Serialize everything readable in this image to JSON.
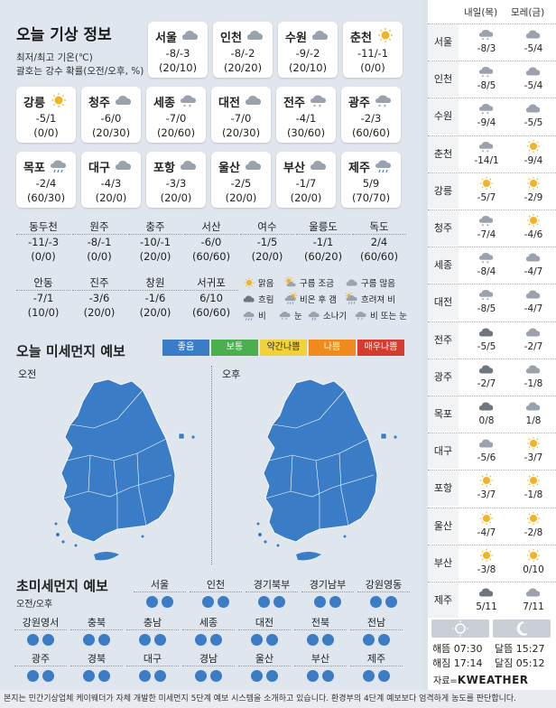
{
  "title": "오늘 기상 정보",
  "subtitle1": "최저/최고 기온(℃)",
  "subtitle2": "괄호는 강수 확률(오전/오후, %)",
  "main_cities": [
    {
      "name": "서울",
      "temp": "-8/-3",
      "prob": "(20/10)",
      "icon": "cloud-icon"
    },
    {
      "name": "인천",
      "temp": "-8/-2",
      "prob": "(20/20)",
      "icon": "cloud-icon"
    },
    {
      "name": "수원",
      "temp": "-9/-2",
      "prob": "(20/10)",
      "icon": "cloud-icon"
    },
    {
      "name": "춘천",
      "temp": "-11/-1",
      "prob": "(0/0)",
      "icon": "sun-icon"
    },
    {
      "name": "강릉",
      "temp": "-5/1",
      "prob": "(0/0)",
      "icon": "sun-icon"
    },
    {
      "name": "청주",
      "temp": "-6/0",
      "prob": "(20/30)",
      "icon": "cloud-icon"
    },
    {
      "name": "세종",
      "temp": "-7/0",
      "prob": "(20/60)",
      "icon": "snow-cloud-icon"
    },
    {
      "name": "대전",
      "temp": "-7/0",
      "prob": "(20/30)",
      "icon": "cloud-icon"
    },
    {
      "name": "전주",
      "temp": "-4/1",
      "prob": "(30/60)",
      "icon": "snow-cloud-icon"
    },
    {
      "name": "광주",
      "temp": "-2/3",
      "prob": "(60/60)",
      "icon": "snow-cloud-icon"
    },
    {
      "name": "목포",
      "temp": "-2/4",
      "prob": "(60/30)",
      "icon": "rain-cloud-icon"
    },
    {
      "name": "대구",
      "temp": "-4/3",
      "prob": "(20/0)",
      "icon": "cloud-icon"
    },
    {
      "name": "포항",
      "temp": "-3/3",
      "prob": "(20/0)",
      "icon": "cloud-icon"
    },
    {
      "name": "울산",
      "temp": "-2/5",
      "prob": "(20/0)",
      "icon": "cloud-icon"
    },
    {
      "name": "부산",
      "temp": "-1/7",
      "prob": "(20/0)",
      "icon": "cloud-icon"
    },
    {
      "name": "제주",
      "temp": "5/9",
      "prob": "(70/70)",
      "icon": "rain-cloud-icon"
    }
  ],
  "minor_row1": [
    {
      "name": "동두천",
      "temp": "-11/-3",
      "prob": "(0/0)"
    },
    {
      "name": "원주",
      "temp": "-8/-1",
      "prob": "(0/0)"
    },
    {
      "name": "충주",
      "temp": "-10/-1",
      "prob": "(20/0)"
    },
    {
      "name": "서산",
      "temp": "-6/0",
      "prob": "(60/60)"
    },
    {
      "name": "여수",
      "temp": "-1/5",
      "prob": "(20/0)"
    },
    {
      "name": "울릉도",
      "temp": "-1/1",
      "prob": "(60/20)"
    },
    {
      "name": "독도",
      "temp": "2/4",
      "prob": "(60/60)"
    }
  ],
  "minor_row2": [
    {
      "name": "안동",
      "temp": "-7/1",
      "prob": "(10/0)"
    },
    {
      "name": "진주",
      "temp": "-3/6",
      "prob": "(20/0)"
    },
    {
      "name": "창원",
      "temp": "-1/6",
      "prob": "(20/0)"
    },
    {
      "name": "서귀포",
      "temp": "6/10",
      "prob": "(60/60)"
    }
  ],
  "legend": [
    {
      "label": "맑음",
      "icon": "sun-icon"
    },
    {
      "label": "구름 조금",
      "icon": "sun-cloud-icon"
    },
    {
      "label": "구름 많음",
      "icon": "cloud-icon"
    },
    {
      "label": "흐림",
      "icon": "dark-cloud-icon"
    },
    {
      "label": "비온 후 갬",
      "icon": "rain-sun-icon"
    },
    {
      "label": "흐려져 비",
      "icon": "sun-rain-icon"
    },
    {
      "label": "비",
      "icon": "rain-cloud-icon"
    },
    {
      "label": "눈",
      "icon": "snow-cloud-icon"
    },
    {
      "label": "소나기",
      "icon": "shower-icon"
    },
    {
      "label": "비 또는 눈",
      "icon": "sleet-icon"
    }
  ],
  "dust": {
    "title": "오늘 미세먼지 예보",
    "scale": [
      {
        "label": "좋음",
        "color": "#3b7cc6"
      },
      {
        "label": "보통",
        "color": "#4cae4f"
      },
      {
        "label": "약간나쁨",
        "color": "#f2d23a"
      },
      {
        "label": "나쁨",
        "color": "#f08a1c"
      },
      {
        "label": "매우나쁨",
        "color": "#d63b2f"
      }
    ],
    "am_label": "오전",
    "pm_label": "오후",
    "map_color": "#3b7cc6"
  },
  "fine_dust": {
    "title": "초미세먼지 예보",
    "subtitle": "오전/오후",
    "row1": [
      "서울",
      "인천",
      "경기북부",
      "경기남부",
      "강원영동"
    ],
    "row2": [
      "강원영서",
      "충북",
      "충남",
      "세종",
      "대전",
      "전북",
      "전남"
    ],
    "row3": [
      "광주",
      "경북",
      "대구",
      "경남",
      "울산",
      "부산",
      "제주"
    ],
    "dot_color": "#3c7cc4"
  },
  "forecast": {
    "col1": "내일(목)",
    "col2": "모레(금)",
    "rows": [
      {
        "name": "서울",
        "d1": "-8/3",
        "i1": "snow-cloud-icon",
        "d2": "-5/4",
        "i2": "cloud-icon"
      },
      {
        "name": "인천",
        "d1": "-8/5",
        "i1": "snow-cloud-icon",
        "d2": "-5/4",
        "i2": "cloud-icon"
      },
      {
        "name": "수원",
        "d1": "-9/4",
        "i1": "snow-cloud-icon",
        "d2": "-5/5",
        "i2": "cloud-icon"
      },
      {
        "name": "춘천",
        "d1": "-14/1",
        "i1": "snow-cloud-icon",
        "d2": "-9/4",
        "i2": "sun-icon"
      },
      {
        "name": "강릉",
        "d1": "-5/7",
        "i1": "sun-icon",
        "d2": "-2/9",
        "i2": "sun-icon"
      },
      {
        "name": "청주",
        "d1": "-7/4",
        "i1": "snow-cloud-icon",
        "d2": "-4/6",
        "i2": "sun-icon"
      },
      {
        "name": "세종",
        "d1": "-8/4",
        "i1": "snow-cloud-icon",
        "d2": "-4/7",
        "i2": "cloud-icon"
      },
      {
        "name": "대전",
        "d1": "-8/5",
        "i1": "snow-cloud-icon",
        "d2": "-4/7",
        "i2": "cloud-icon"
      },
      {
        "name": "전주",
        "d1": "-5/5",
        "i1": "dark-cloud-icon",
        "d2": "-2/7",
        "i2": "cloud-icon"
      },
      {
        "name": "광주",
        "d1": "-2/7",
        "i1": "dark-cloud-icon",
        "d2": "-1/8",
        "i2": "cloud-icon"
      },
      {
        "name": "목포",
        "d1": "0/8",
        "i1": "dark-cloud-icon",
        "d2": "1/8",
        "i2": "cloud-icon"
      },
      {
        "name": "대구",
        "d1": "-5/6",
        "i1": "cloud-icon",
        "d2": "-3/7",
        "i2": "sun-icon"
      },
      {
        "name": "포항",
        "d1": "-3/7",
        "i1": "sun-icon",
        "d2": "-1/8",
        "i2": "sun-icon"
      },
      {
        "name": "울산",
        "d1": "-4/7",
        "i1": "sun-icon",
        "d2": "-2/8",
        "i2": "sun-icon"
      },
      {
        "name": "부산",
        "d1": "-3/8",
        "i1": "sun-icon",
        "d2": "0/10",
        "i2": "sun-icon"
      },
      {
        "name": "제주",
        "d1": "5/11",
        "i1": "dark-cloud-icon",
        "d2": "7/11",
        "i2": "cloud-icon"
      }
    ]
  },
  "sun": {
    "sunrise": "해뜸 07:30",
    "sunset": "해짐 17:14",
    "moonrise": "달뜸 15:27",
    "moonset": "달짐 05:12"
  },
  "source_prefix": "자료=",
  "source_name": "KWEATHER",
  "footer": "본지는 민간기상업체 케이웨더가 자체 개발한 미세먼지 5단계 예보 시스템을 소개하고 있습니다. 환경부의 4단계 예보보다 엄격하게 농도를 판단합니다."
}
